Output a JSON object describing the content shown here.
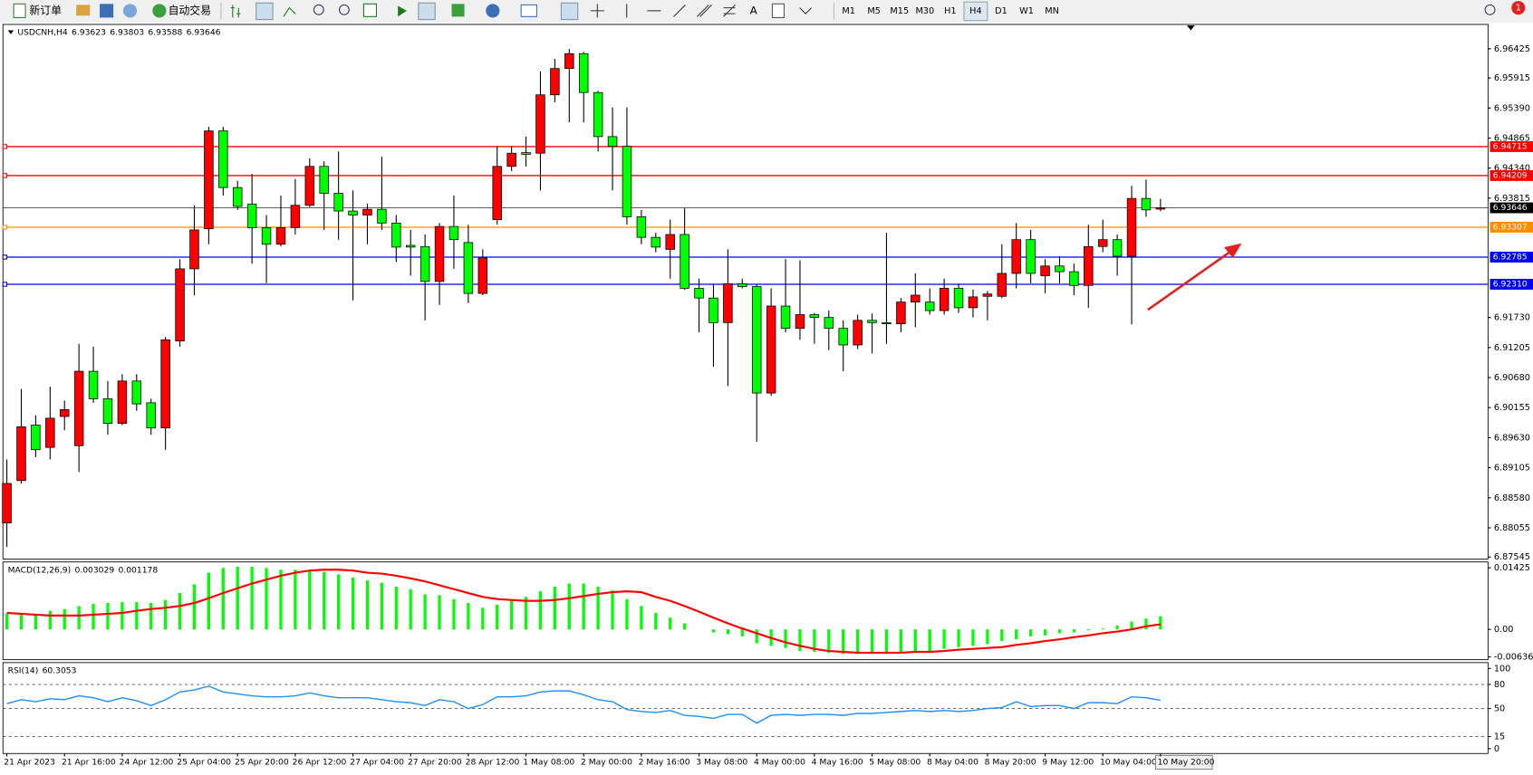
{
  "toolbar": {
    "new_order": "新订单",
    "auto_trading": "自动交易",
    "text_tool": "A",
    "timeframes": [
      "M1",
      "M5",
      "M15",
      "M30",
      "H1",
      "H4",
      "D1",
      "W1",
      "MN"
    ],
    "notifications": 1
  },
  "chart_data": [
    {
      "type": "candlestick",
      "symbol": "USDCNH,H4",
      "up_color": "#ff0000",
      "down_color": "#00ff00",
      "categories": [
        "21 Apr 2023",
        null,
        null,
        null,
        "21 Apr 16:00",
        null,
        null,
        null,
        "24 Apr 12:00",
        null,
        null,
        null,
        "25 Apr 04:00",
        null,
        null,
        null,
        "25 Apr 20:00",
        null,
        null,
        null,
        "26 Apr 12:00",
        null,
        null,
        null,
        "27 Apr 04:00",
        null,
        null,
        null,
        "27 Apr 20:00",
        null,
        null,
        null,
        "28 Apr 12:00",
        null,
        null,
        null,
        "1 May 08:00",
        null,
        null,
        null,
        "2 May 00:00",
        null,
        null,
        null,
        "2 May 16:00",
        null,
        null,
        null,
        "3 May 08:00",
        null,
        null,
        null,
        "4 May 00:00",
        null,
        null,
        null,
        "4 May 16:00",
        null,
        null,
        null,
        "5 May 08:00",
        null,
        null,
        null,
        "8 May 04:00",
        null,
        null,
        null,
        "8 May 20:00",
        null,
        null,
        null,
        "9 May 12:00",
        null,
        null,
        null,
        "10 May 04:00",
        null,
        null,
        null,
        "10 May 20:00"
      ],
      "candles": [
        [
          6.8814,
          6.8925,
          6.8772,
          6.8883
        ],
        [
          6.8888,
          6.9048,
          6.8883,
          6.8982
        ],
        [
          6.8985,
          6.9002,
          6.8929,
          6.8942
        ],
        [
          6.8946,
          6.9052,
          6.8925,
          6.8997
        ],
        [
          6.9,
          6.9028,
          6.8976,
          6.9012
        ],
        [
          6.8949,
          6.9127,
          6.8903,
          6.9079
        ],
        [
          6.9079,
          6.9122,
          6.9024,
          6.9031
        ],
        [
          6.9031,
          6.9062,
          6.8968,
          6.8988
        ],
        [
          6.8988,
          6.9074,
          6.8985,
          6.9062
        ],
        [
          6.9062,
          6.9074,
          6.901,
          6.9022
        ],
        [
          6.9024,
          6.9031,
          6.8968,
          6.898
        ],
        [
          6.898,
          6.9139,
          6.8942,
          6.9134
        ],
        [
          6.9132,
          6.9275,
          6.9122,
          6.9258
        ],
        [
          6.9258,
          6.9369,
          6.9212,
          6.9326
        ],
        [
          6.9328,
          6.9506,
          6.9301,
          6.9499
        ],
        [
          6.9499,
          6.9506,
          6.9386,
          6.94
        ],
        [
          6.94,
          6.9412,
          6.9361,
          6.9367
        ],
        [
          6.9371,
          6.9424,
          6.9267,
          6.933
        ],
        [
          6.933,
          6.9352,
          6.9233,
          6.9301
        ],
        [
          6.9301,
          6.9386,
          6.9297,
          6.933
        ],
        [
          6.933,
          6.9415,
          6.9318,
          6.9369
        ],
        [
          6.9369,
          6.9451,
          6.9366,
          6.9437
        ],
        [
          6.9437,
          6.9446,
          6.9326,
          6.939
        ],
        [
          6.939,
          6.9463,
          6.9309,
          6.9359
        ],
        [
          6.9359,
          6.9395,
          6.9203,
          6.9352
        ],
        [
          6.9352,
          6.9372,
          6.9301,
          6.9362
        ],
        [
          6.9362,
          6.9454,
          6.9326,
          6.9338
        ],
        [
          6.9338,
          6.9352,
          6.927,
          6.9296
        ],
        [
          6.9299,
          6.9326,
          6.9246,
          6.9296
        ],
        [
          6.9297,
          6.9318,
          6.9168,
          6.9236
        ],
        [
          6.9236,
          6.9338,
          6.9195,
          6.9332
        ],
        [
          6.9332,
          6.9386,
          6.9258,
          6.9309
        ],
        [
          6.9304,
          6.9335,
          6.9198,
          6.9215
        ],
        [
          6.9215,
          6.9292,
          6.9212,
          6.9277
        ],
        [
          6.9344,
          6.9472,
          6.9335,
          6.9437
        ],
        [
          6.9437,
          6.9472,
          6.9429,
          6.946
        ],
        [
          6.9461,
          6.9489,
          6.9437,
          6.9458
        ],
        [
          6.946,
          6.9603,
          6.9395,
          6.9562
        ],
        [
          6.9562,
          6.9625,
          6.9549,
          6.9608
        ],
        [
          6.9608,
          6.9642,
          6.9514,
          6.9634
        ],
        [
          6.9634,
          6.9637,
          6.9514,
          6.9566
        ],
        [
          6.9566,
          6.9569,
          6.9463,
          6.9489
        ],
        [
          6.9489,
          6.954,
          6.9395,
          6.9472
        ],
        [
          6.9472,
          6.954,
          6.9335,
          6.9349
        ],
        [
          6.9349,
          6.9361,
          6.9301,
          6.9313
        ],
        [
          6.9313,
          6.9321,
          6.9287,
          6.9296
        ],
        [
          6.9292,
          6.9344,
          6.9241,
          6.9318
        ],
        [
          6.9318,
          6.9364,
          6.9221,
          6.9224
        ],
        [
          6.9224,
          6.9241,
          6.9147,
          6.9207
        ],
        [
          6.9207,
          6.9232,
          6.9087,
          6.9164
        ],
        [
          6.9164,
          6.9292,
          6.9053,
          6.9232
        ],
        [
          6.9232,
          6.9241,
          6.9224,
          6.9227
        ],
        [
          6.9227,
          6.9232,
          6.8956,
          6.9041
        ],
        [
          6.9041,
          6.9224,
          6.9036,
          6.9193
        ],
        [
          6.9193,
          6.9275,
          6.9147,
          6.9154
        ],
        [
          6.9154,
          6.9273,
          6.9134,
          6.9178
        ],
        [
          6.9178,
          6.9181,
          6.9127,
          6.9173
        ],
        [
          6.9173,
          6.9185,
          6.9116,
          6.9154
        ],
        [
          6.9154,
          6.9168,
          6.9079,
          6.9125
        ],
        [
          6.9125,
          6.9178,
          6.9118,
          6.9168
        ],
        [
          6.9168,
          6.918,
          6.911,
          6.9164
        ],
        [
          6.9164,
          6.9321,
          6.9127,
          6.9162
        ],
        [
          6.9162,
          6.9207,
          6.9147,
          6.92
        ],
        [
          6.92,
          6.925,
          6.9156,
          6.9212
        ],
        [
          6.92,
          6.9224,
          6.9178,
          6.9185
        ],
        [
          6.9185,
          6.9241,
          6.9178,
          6.9224
        ],
        [
          6.9224,
          6.9232,
          6.9181,
          6.919
        ],
        [
          6.919,
          6.9222,
          6.9173,
          6.9209
        ],
        [
          6.921,
          6.9219,
          6.9168,
          6.9214
        ],
        [
          6.921,
          6.9301,
          6.9207,
          6.925
        ],
        [
          6.925,
          6.9338,
          6.9224,
          6.9309
        ],
        [
          6.9309,
          6.9326,
          6.9233,
          6.925
        ],
        [
          6.9246,
          6.9275,
          6.9215,
          6.9263
        ],
        [
          6.9263,
          6.928,
          6.9233,
          6.9253
        ],
        [
          6.9253,
          6.9267,
          6.9212,
          6.9229
        ],
        [
          6.9229,
          6.9335,
          6.919,
          6.9297
        ],
        [
          6.9297,
          6.9344,
          6.9287,
          6.9309
        ],
        [
          6.9309,
          6.9318,
          6.9246,
          6.928
        ],
        [
          6.928,
          6.9403,
          6.9161,
          6.9381
        ],
        [
          6.9381,
          6.9414,
          6.9349,
          6.9361
        ],
        [
          6.93623,
          6.93803,
          6.93588,
          6.93646
        ]
      ],
      "ylim": [
        6.8751,
        6.9685
      ],
      "yticks": [
        6.96425,
        6.95915,
        {
          "value": 6.9539,
          "label": "6.95390"
        },
        6.94865,
        {
          "value": 6.9434,
          "label": "6.94340"
        },
        6.93815,
        {
          "value": 6.9173,
          "label": "6.91730"
        },
        6.91205,
        {
          "value": 6.9068,
          "label": "6.90680"
        },
        6.90155,
        {
          "value": 6.8963,
          "label": "6.89630"
        },
        6.89105,
        {
          "value": 6.8858,
          "label": "6.88580"
        },
        6.88055,
        6.87545
      ],
      "levels": [
        {
          "value": 6.94715,
          "color": "#ff0000"
        },
        {
          "value": 6.94209,
          "color": "#ff0000"
        },
        {
          "value": 6.93307,
          "color": "#ff8c00"
        },
        {
          "value": 6.92785,
          "color": "#0000ff"
        },
        {
          "value": 6.9231,
          "label": "6.92310",
          "color": "#0000ff"
        }
      ]
    },
    {
      "type": "macd",
      "name": "MACD(12,26,9)",
      "histogram": {
        "color": "#00ff00",
        "values": [
          0.0036,
          0.0036,
          0.0036,
          0.0043,
          0.0047,
          0.0054,
          0.0059,
          0.0061,
          0.0063,
          0.0063,
          0.0061,
          0.0068,
          0.0084,
          0.0104,
          0.0131,
          0.0142,
          0.0145,
          0.0145,
          0.0142,
          0.0138,
          0.0138,
          0.0138,
          0.0133,
          0.0127,
          0.012,
          0.0113,
          0.0108,
          0.0099,
          0.0093,
          0.0081,
          0.0079,
          0.007,
          0.0061,
          0.005,
          0.0057,
          0.0068,
          0.0075,
          0.0088,
          0.0099,
          0.0106,
          0.0106,
          0.0099,
          0.009,
          0.007,
          0.0054,
          0.0038,
          0.0027,
          0.0014,
          0,
          -0.0007,
          -0.0011,
          -0.0016,
          -0.0032,
          -0.0038,
          -0.0043,
          -0.005,
          -0.0052,
          -0.0054,
          -0.0057,
          -0.0057,
          -0.0057,
          -0.0057,
          -0.0054,
          -0.0052,
          -0.005,
          -0.0045,
          -0.0041,
          -0.0038,
          -0.0034,
          -0.0027,
          -0.0023,
          -0.0016,
          -0.0014,
          -0.0009,
          -0.0007,
          -0.0002,
          0.0002,
          0.0009,
          0.0018,
          0.0025,
          0.003029
        ]
      },
      "signal": {
        "color": "#ff0000",
        "values": [
          0.0038,
          0.0036,
          0.0034,
          0.0032,
          0.0032,
          0.0032,
          0.0034,
          0.0036,
          0.0038,
          0.0043,
          0.0047,
          0.005,
          0.0054,
          0.0061,
          0.0072,
          0.0084,
          0.0095,
          0.0106,
          0.0115,
          0.0124,
          0.0131,
          0.0136,
          0.0138,
          0.0138,
          0.0136,
          0.0131,
          0.0129,
          0.0124,
          0.0118,
          0.0111,
          0.0102,
          0.0093,
          0.0084,
          0.0075,
          0.007,
          0.0068,
          0.0066,
          0.0066,
          0.0068,
          0.0072,
          0.0077,
          0.0082,
          0.0086,
          0.0088,
          0.0086,
          0.0075,
          0.0066,
          0.0054,
          0.0041,
          0.0027,
          0.0014,
          0.0002,
          -0.0009,
          -0.002,
          -0.003,
          -0.0038,
          -0.0045,
          -0.005,
          -0.0052,
          -0.0054,
          -0.0054,
          -0.0054,
          -0.0054,
          -0.0052,
          -0.0052,
          -0.005,
          -0.0047,
          -0.0045,
          -0.0043,
          -0.0041,
          -0.0036,
          -0.0032,
          -0.0027,
          -0.0023,
          -0.0018,
          -0.0014,
          -0.0009,
          -0.0005,
          0,
          0.0007,
          0.001178
        ]
      },
      "ylim": [
        -0.00678,
        0.01514
      ],
      "yticks": [
        0.01425,
        {
          "value": 0,
          "label": "0.00"
        },
        -0.006367
      ]
    },
    {
      "type": "line",
      "name": "RSI(14)",
      "color": "#1e90ff",
      "values": [
        56.1,
        61,
        58.5,
        62.2,
        61,
        65.9,
        63.4,
        58.5,
        63.4,
        59.8,
        53.7,
        61,
        70.7,
        73.2,
        78,
        70.7,
        68.3,
        65.9,
        64.6,
        64.6,
        65.9,
        69.5,
        65.9,
        63.4,
        63.4,
        63.4,
        61,
        58.5,
        57.3,
        53.7,
        61,
        58.5,
        50,
        54.9,
        64.6,
        64.6,
        65.9,
        70.7,
        72,
        72,
        67.1,
        61,
        58.5,
        48.8,
        46.3,
        45.1,
        47.6,
        41.5,
        40.2,
        37.8,
        42.7,
        42.7,
        31.7,
        41.5,
        42.7,
        41.5,
        42.7,
        42.7,
        41.5,
        43.9,
        43.9,
        45.1,
        46.3,
        47.6,
        46.3,
        47.6,
        46.3,
        47.6,
        50,
        51.2,
        58.5,
        52.4,
        53.7,
        53.7,
        50,
        57.3,
        57.3,
        56.1,
        64.6,
        63.4,
        60.3053
      ],
      "ylim": [
        -4.9,
        106.1
      ],
      "yticks": [
        100,
        80,
        50,
        15,
        0
      ],
      "levels": [
        80,
        50,
        15
      ]
    }
  ]
}
